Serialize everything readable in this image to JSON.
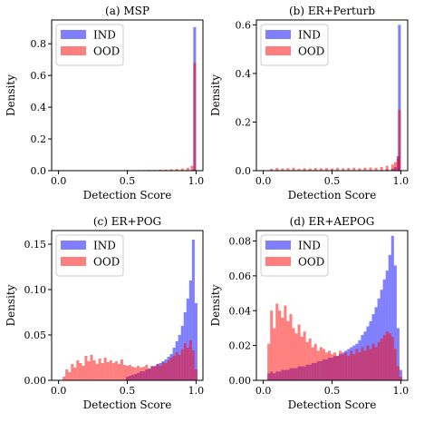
{
  "colors": {
    "ind": "#0000ff",
    "ood": "#ff0000",
    "overlap": "#8a1f6e"
  },
  "legend": [
    "IND",
    "OOD"
  ],
  "chart_data": [
    {
      "type": "bar",
      "title": "(a) MSP",
      "xlabel": "Detection Score",
      "ylabel": "Density",
      "xlim": [
        -0.05,
        1.05
      ],
      "ylim": [
        0,
        0.95
      ],
      "xticks": [
        "0.0",
        "0.5",
        "1.0"
      ],
      "yticks": [
        "0.0",
        "0.2",
        "0.4",
        "0.6",
        "0.8"
      ],
      "legend_position": "top-left",
      "bin_width": 0.02,
      "series": [
        {
          "name": "IND",
          "bins": [
            [
              0.96,
              0.002
            ],
            [
              0.98,
              0.006
            ],
            [
              0.99,
              0.905
            ]
          ]
        },
        {
          "name": "OOD",
          "bins": [
            [
              0.5,
              0.004
            ],
            [
              0.54,
              0.003
            ],
            [
              0.58,
              0.004
            ],
            [
              0.62,
              0.004
            ],
            [
              0.66,
              0.005
            ],
            [
              0.7,
              0.005
            ],
            [
              0.74,
              0.006
            ],
            [
              0.78,
              0.007
            ],
            [
              0.82,
              0.009
            ],
            [
              0.86,
              0.011
            ],
            [
              0.9,
              0.014
            ],
            [
              0.94,
              0.018
            ],
            [
              0.97,
              0.03
            ],
            [
              0.99,
              0.68
            ]
          ]
        }
      ]
    },
    {
      "type": "bar",
      "title": "(b) ER+Perturb",
      "xlabel": "Detection Score",
      "ylabel": "Density",
      "xlim": [
        -0.05,
        1.05
      ],
      "ylim": [
        0,
        0.62
      ],
      "xticks": [
        "0.0",
        "0.5",
        "1.0"
      ],
      "yticks": [
        "0.0",
        "0.2",
        "0.4",
        "0.6"
      ],
      "legend_position": "top-left",
      "bin_width": 0.02,
      "series": [
        {
          "name": "IND",
          "bins": [
            [
              0.9,
              0.005
            ],
            [
              0.94,
              0.008
            ],
            [
              0.96,
              0.015
            ],
            [
              0.98,
              0.06
            ],
            [
              0.99,
              0.6
            ]
          ]
        },
        {
          "name": "OOD",
          "bins": [
            [
              0.06,
              0.008
            ],
            [
              0.1,
              0.011
            ],
            [
              0.14,
              0.009
            ],
            [
              0.18,
              0.01
            ],
            [
              0.22,
              0.012
            ],
            [
              0.26,
              0.008
            ],
            [
              0.3,
              0.01
            ],
            [
              0.34,
              0.009
            ],
            [
              0.38,
              0.011
            ],
            [
              0.42,
              0.01
            ],
            [
              0.46,
              0.011
            ],
            [
              0.5,
              0.009
            ],
            [
              0.54,
              0.012
            ],
            [
              0.58,
              0.01
            ],
            [
              0.62,
              0.011
            ],
            [
              0.66,
              0.012
            ],
            [
              0.7,
              0.01
            ],
            [
              0.74,
              0.012
            ],
            [
              0.78,
              0.013
            ],
            [
              0.82,
              0.012
            ],
            [
              0.86,
              0.015
            ],
            [
              0.9,
              0.02
            ],
            [
              0.94,
              0.025
            ],
            [
              0.96,
              0.035
            ],
            [
              0.98,
              0.05
            ],
            [
              0.99,
              0.25
            ]
          ]
        }
      ]
    },
    {
      "type": "bar",
      "title": "(c) ER+POG",
      "xlabel": "Detection Score",
      "ylabel": "Density",
      "xlim": [
        -0.05,
        1.05
      ],
      "ylim": [
        0,
        0.165
      ],
      "xticks": [
        "0.0",
        "0.5",
        "1.0"
      ],
      "yticks": [
        "0.00",
        "0.05",
        "0.10",
        "0.15"
      ],
      "legend_position": "top-left",
      "bin_width": 0.02,
      "series": [
        {
          "name": "IND",
          "bins": [
            [
              0.5,
              0.004
            ],
            [
              0.52,
              0.005
            ],
            [
              0.54,
              0.006
            ],
            [
              0.56,
              0.007
            ],
            [
              0.58,
              0.008
            ],
            [
              0.6,
              0.01
            ],
            [
              0.62,
              0.01
            ],
            [
              0.64,
              0.012
            ],
            [
              0.66,
              0.013
            ],
            [
              0.68,
              0.015
            ],
            [
              0.7,
              0.016
            ],
            [
              0.72,
              0.018
            ],
            [
              0.74,
              0.019
            ],
            [
              0.76,
              0.021
            ],
            [
              0.78,
              0.023
            ],
            [
              0.8,
              0.026
            ],
            [
              0.82,
              0.029
            ],
            [
              0.84,
              0.036
            ],
            [
              0.86,
              0.043
            ],
            [
              0.88,
              0.05
            ],
            [
              0.9,
              0.06
            ],
            [
              0.92,
              0.075
            ],
            [
              0.94,
              0.09
            ],
            [
              0.96,
              0.11
            ],
            [
              0.98,
              0.155
            ],
            [
              1.0,
              0.085
            ]
          ]
        },
        {
          "name": "OOD",
          "bins": [
            [
              0.04,
              0.004
            ],
            [
              0.06,
              0.012
            ],
            [
              0.08,
              0.009
            ],
            [
              0.1,
              0.018
            ],
            [
              0.12,
              0.014
            ],
            [
              0.14,
              0.022
            ],
            [
              0.16,
              0.019
            ],
            [
              0.18,
              0.016
            ],
            [
              0.2,
              0.027
            ],
            [
              0.22,
              0.021
            ],
            [
              0.24,
              0.028
            ],
            [
              0.26,
              0.022
            ],
            [
              0.28,
              0.018
            ],
            [
              0.3,
              0.024
            ],
            [
              0.32,
              0.019
            ],
            [
              0.34,
              0.025
            ],
            [
              0.36,
              0.02
            ],
            [
              0.38,
              0.022
            ],
            [
              0.4,
              0.019
            ],
            [
              0.42,
              0.021
            ],
            [
              0.44,
              0.018
            ],
            [
              0.46,
              0.023
            ],
            [
              0.48,
              0.017
            ],
            [
              0.5,
              0.016
            ],
            [
              0.52,
              0.017
            ],
            [
              0.54,
              0.015
            ],
            [
              0.56,
              0.014
            ],
            [
              0.58,
              0.016
            ],
            [
              0.6,
              0.014
            ],
            [
              0.62,
              0.015
            ],
            [
              0.64,
              0.017
            ],
            [
              0.66,
              0.013
            ],
            [
              0.68,
              0.016
            ],
            [
              0.7,
              0.015
            ],
            [
              0.72,
              0.018
            ],
            [
              0.74,
              0.016
            ],
            [
              0.76,
              0.02
            ],
            [
              0.78,
              0.019
            ],
            [
              0.8,
              0.022
            ],
            [
              0.82,
              0.025
            ],
            [
              0.84,
              0.027
            ],
            [
              0.86,
              0.031
            ],
            [
              0.88,
              0.028
            ],
            [
              0.9,
              0.034
            ],
            [
              0.92,
              0.041
            ],
            [
              0.94,
              0.036
            ],
            [
              0.96,
              0.044
            ],
            [
              0.98,
              0.033
            ],
            [
              1.0,
              0.012
            ]
          ]
        }
      ]
    },
    {
      "type": "bar",
      "title": "(d) ER+AEPOG",
      "xlabel": "Detection Score",
      "ylabel": "Density",
      "xlim": [
        -0.05,
        1.05
      ],
      "ylim": [
        0,
        0.086
      ],
      "xticks": [
        "0.0",
        "0.5",
        "1.0"
      ],
      "yticks": [
        "0.00",
        "0.02",
        "0.04",
        "0.06",
        "0.08"
      ],
      "legend_position": "top-left",
      "bin_width": 0.02,
      "series": [
        {
          "name": "IND",
          "bins": [
            [
              0.04,
              0.004
            ],
            [
              0.06,
              0.005
            ],
            [
              0.08,
              0.004
            ],
            [
              0.1,
              0.005
            ],
            [
              0.12,
              0.005
            ],
            [
              0.14,
              0.006
            ],
            [
              0.16,
              0.006
            ],
            [
              0.18,
              0.006
            ],
            [
              0.2,
              0.007
            ],
            [
              0.22,
              0.007
            ],
            [
              0.24,
              0.007
            ],
            [
              0.26,
              0.008
            ],
            [
              0.28,
              0.008
            ],
            [
              0.3,
              0.008
            ],
            [
              0.32,
              0.009
            ],
            [
              0.34,
              0.009
            ],
            [
              0.36,
              0.01
            ],
            [
              0.38,
              0.01
            ],
            [
              0.4,
              0.011
            ],
            [
              0.42,
              0.011
            ],
            [
              0.44,
              0.012
            ],
            [
              0.46,
              0.012
            ],
            [
              0.48,
              0.013
            ],
            [
              0.5,
              0.013
            ],
            [
              0.52,
              0.014
            ],
            [
              0.54,
              0.014
            ],
            [
              0.56,
              0.015
            ],
            [
              0.58,
              0.016
            ],
            [
              0.6,
              0.017
            ],
            [
              0.62,
              0.018
            ],
            [
              0.64,
              0.019
            ],
            [
              0.66,
              0.02
            ],
            [
              0.68,
              0.021
            ],
            [
              0.7,
              0.023
            ],
            [
              0.72,
              0.026
            ],
            [
              0.74,
              0.028
            ],
            [
              0.76,
              0.031
            ],
            [
              0.78,
              0.034
            ],
            [
              0.8,
              0.038
            ],
            [
              0.82,
              0.042
            ],
            [
              0.84,
              0.047
            ],
            [
              0.86,
              0.052
            ],
            [
              0.88,
              0.058
            ],
            [
              0.9,
              0.063
            ],
            [
              0.92,
              0.072
            ],
            [
              0.94,
              0.083
            ],
            [
              0.96,
              0.066
            ],
            [
              0.98,
              0.03
            ],
            [
              1.0,
              0.006
            ]
          ]
        },
        {
          "name": "OOD",
          "bins": [
            [
              0.04,
              0.021
            ],
            [
              0.06,
              0.04
            ],
            [
              0.08,
              0.03
            ],
            [
              0.1,
              0.044
            ],
            [
              0.12,
              0.04
            ],
            [
              0.14,
              0.036
            ],
            [
              0.16,
              0.043
            ],
            [
              0.18,
              0.034
            ],
            [
              0.2,
              0.038
            ],
            [
              0.22,
              0.03
            ],
            [
              0.24,
              0.027
            ],
            [
              0.26,
              0.032
            ],
            [
              0.28,
              0.025
            ],
            [
              0.3,
              0.028
            ],
            [
              0.32,
              0.022
            ],
            [
              0.34,
              0.024
            ],
            [
              0.36,
              0.019
            ],
            [
              0.38,
              0.021
            ],
            [
              0.4,
              0.017
            ],
            [
              0.42,
              0.019
            ],
            [
              0.44,
              0.018
            ],
            [
              0.46,
              0.016
            ],
            [
              0.48,
              0.017
            ],
            [
              0.5,
              0.015
            ],
            [
              0.52,
              0.016
            ],
            [
              0.54,
              0.014
            ],
            [
              0.56,
              0.017
            ],
            [
              0.58,
              0.015
            ],
            [
              0.6,
              0.016
            ],
            [
              0.62,
              0.014
            ],
            [
              0.64,
              0.017
            ],
            [
              0.66,
              0.015
            ],
            [
              0.68,
              0.018
            ],
            [
              0.7,
              0.016
            ],
            [
              0.72,
              0.019
            ],
            [
              0.74,
              0.017
            ],
            [
              0.76,
              0.02
            ],
            [
              0.78,
              0.018
            ],
            [
              0.8,
              0.021
            ],
            [
              0.82,
              0.019
            ],
            [
              0.84,
              0.022
            ],
            [
              0.86,
              0.024
            ],
            [
              0.88,
              0.026
            ],
            [
              0.9,
              0.028
            ],
            [
              0.92,
              0.027
            ],
            [
              0.94,
              0.025
            ],
            [
              0.96,
              0.018
            ],
            [
              0.98,
              0.008
            ],
            [
              1.0,
              0.002
            ]
          ]
        }
      ]
    }
  ]
}
